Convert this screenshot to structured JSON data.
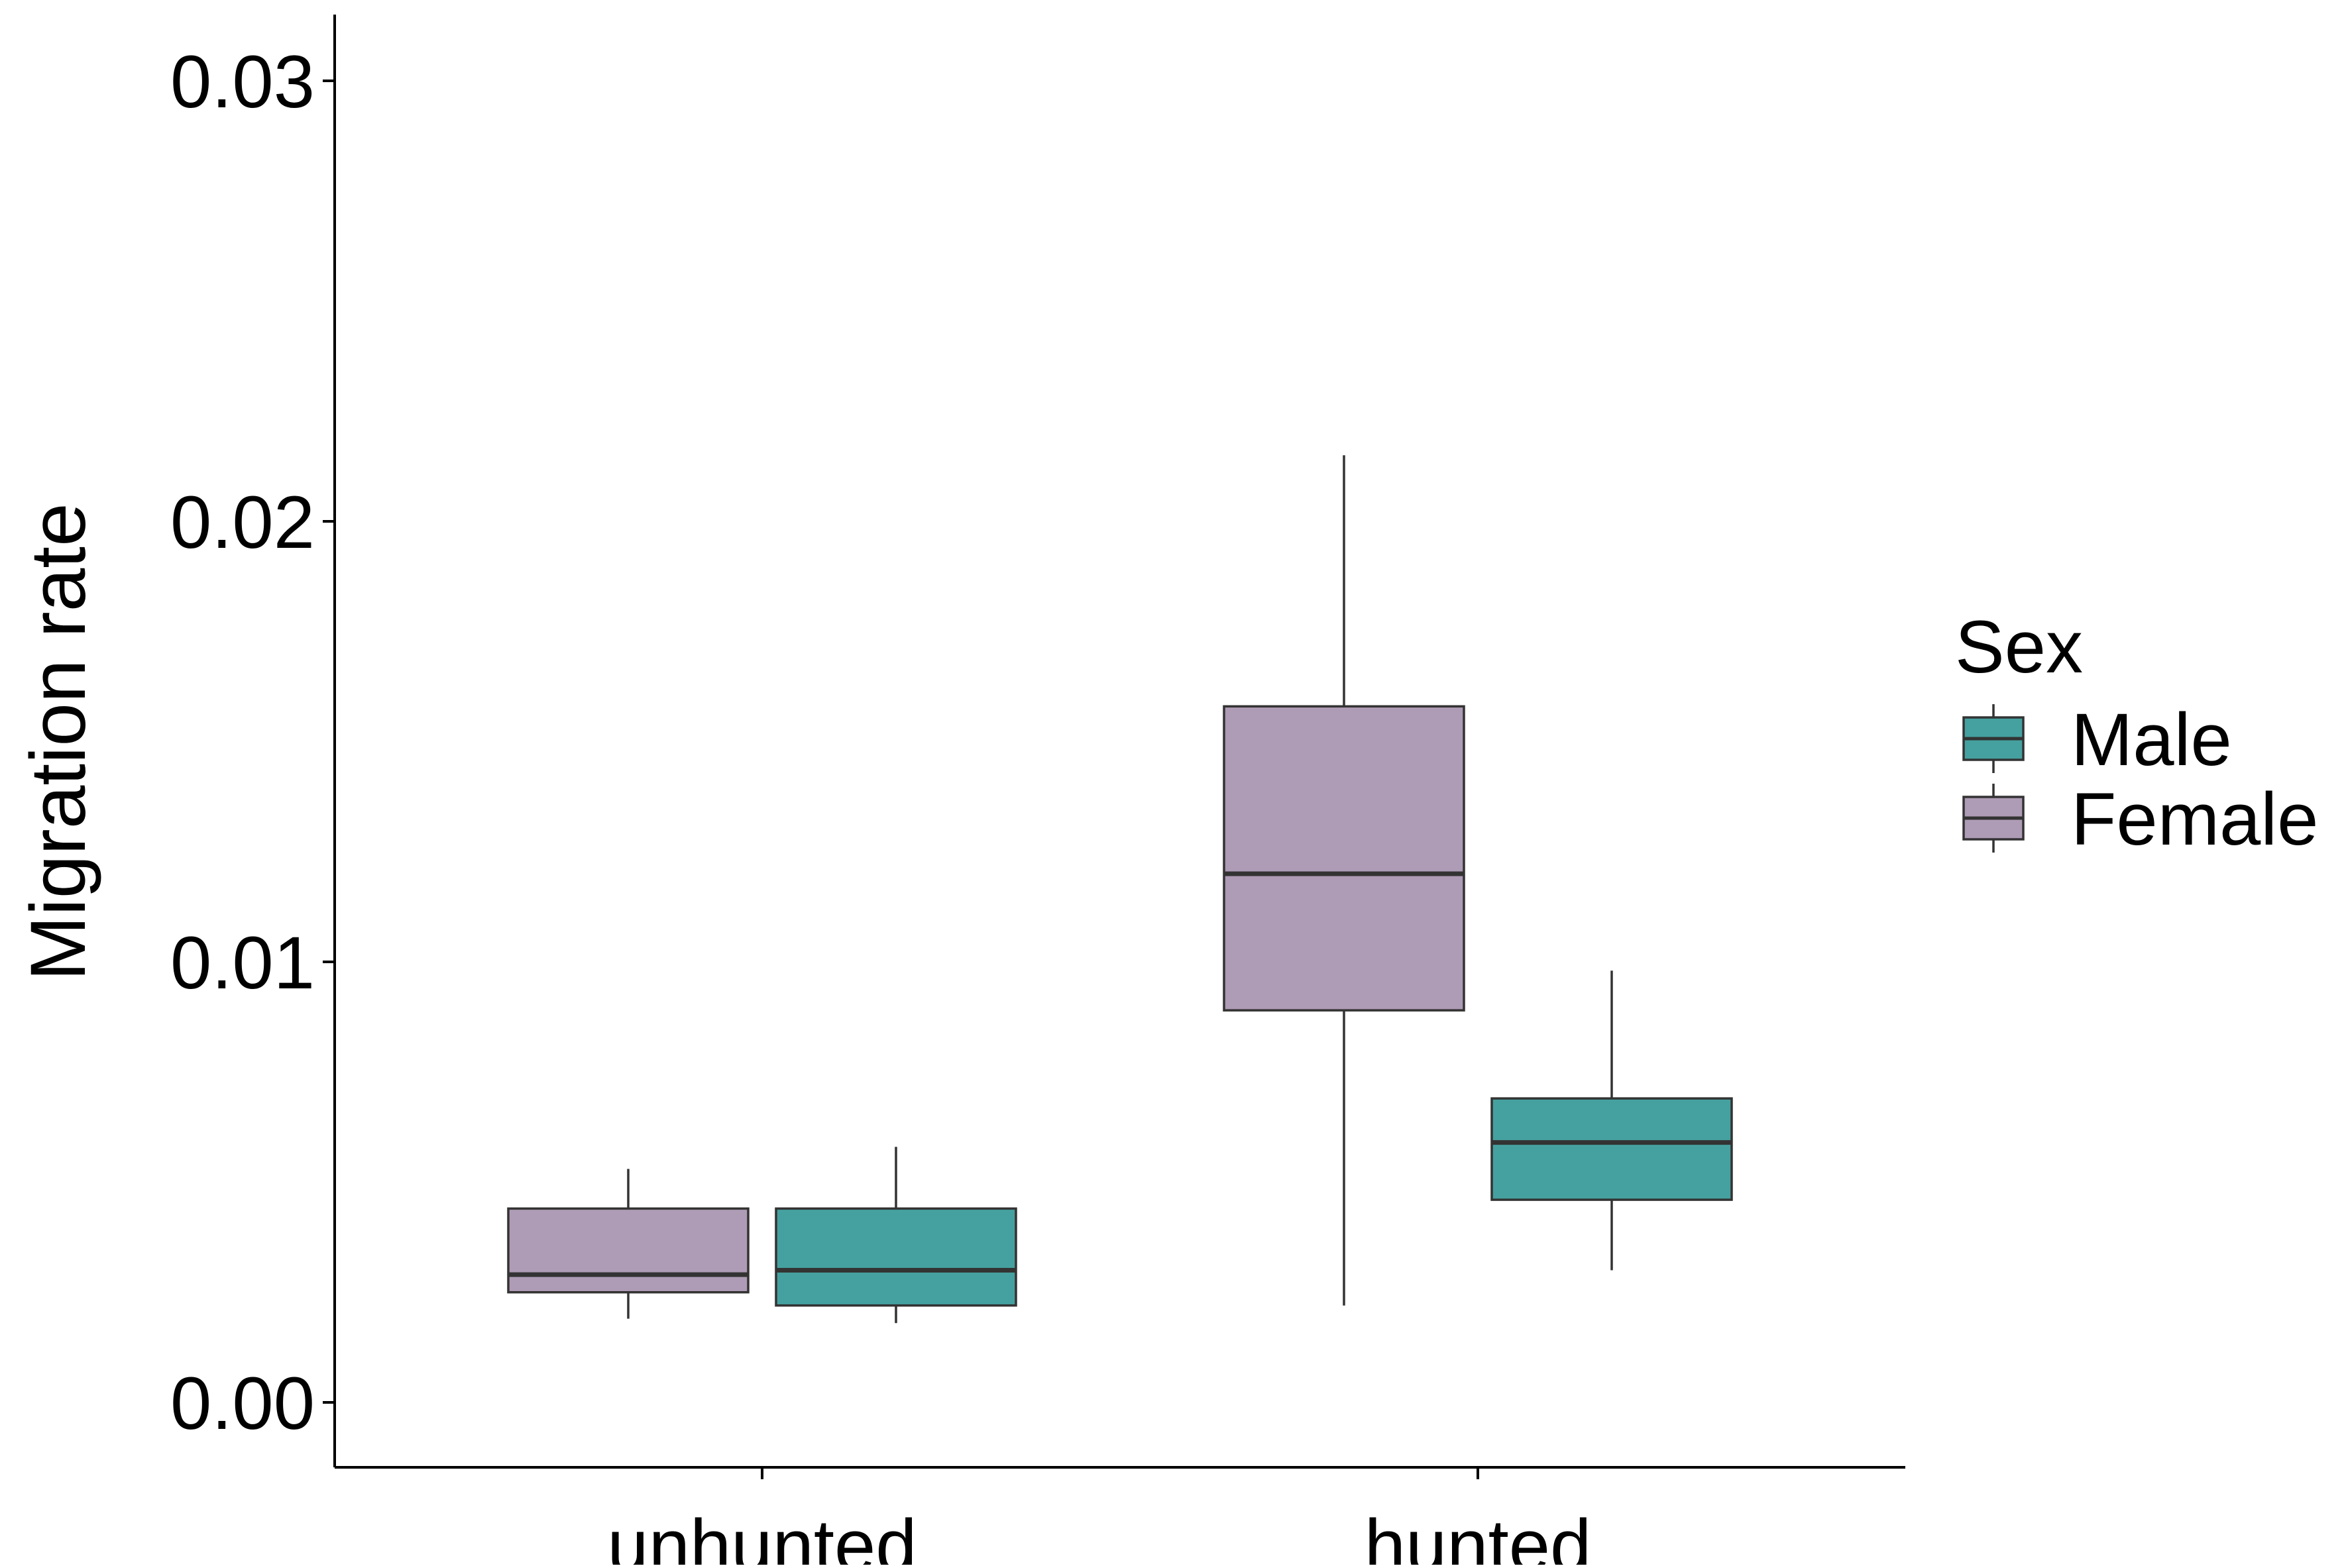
{
  "chart_data": {
    "type": "boxplot",
    "ylabel": "Migration rate",
    "categories": [
      "unhunted",
      "hunted"
    ],
    "yticks": [
      "0.00",
      "0.01",
      "0.02",
      "0.03"
    ],
    "ylim": [
      -0.0015,
      0.0315
    ],
    "grid": false,
    "legend": {
      "title": "Sex",
      "position": "right",
      "items": [
        {
          "label": "Male",
          "color": "#45a19f"
        },
        {
          "label": "Female",
          "color": "#ae9bb5"
        }
      ]
    },
    "series": [
      {
        "name": "Female",
        "color": "#ae9bb5",
        "boxes": [
          {
            "category": "unhunted",
            "min": 0.0019,
            "q1": 0.0025,
            "median": 0.0029,
            "q3": 0.0044,
            "max": 0.0053
          },
          {
            "category": "hunted",
            "min": 0.0022,
            "q1": 0.0089,
            "median": 0.012,
            "q3": 0.0158,
            "max": 0.0215
          }
        ]
      },
      {
        "name": "Male",
        "color": "#45a19f",
        "boxes": [
          {
            "category": "unhunted",
            "min": 0.0018,
            "q1": 0.0022,
            "median": 0.003,
            "q3": 0.0044,
            "max": 0.0058
          },
          {
            "category": "hunted",
            "min": 0.003,
            "q1": 0.0046,
            "median": 0.0059,
            "q3": 0.0069,
            "max": 0.0098
          }
        ]
      }
    ]
  }
}
